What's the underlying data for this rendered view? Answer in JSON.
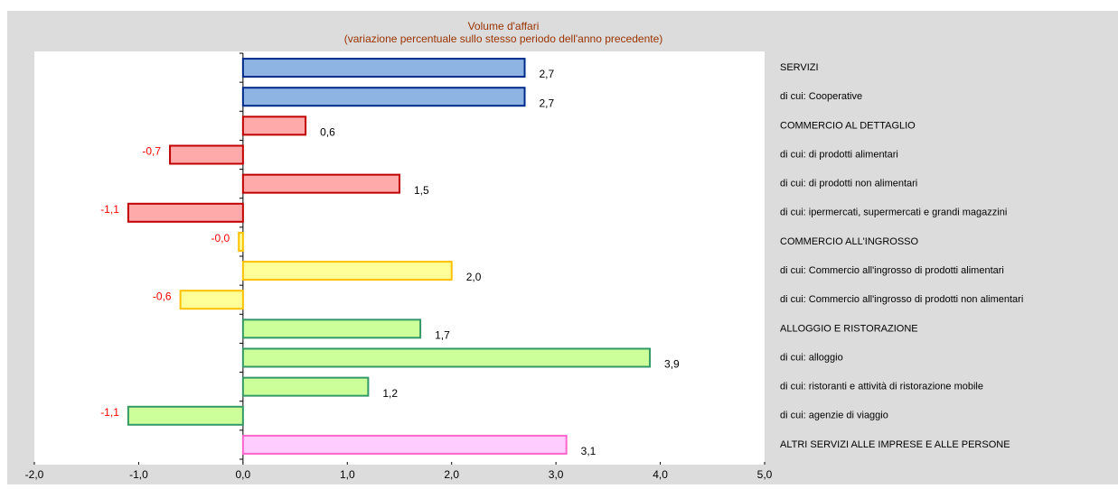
{
  "chart_data": {
    "type": "barh",
    "title": "Volume d'affari",
    "subtitle": "(variazione percentuale sullo stesso periodo dell'anno precedente)",
    "categories": [
      "SERVIZI",
      "di cui: Cooperative",
      "COMMERCIO AL DETTAGLIO",
      "di cui: di prodotti alimentari",
      "di cui: di prodotti non alimentari",
      "di cui: ipermercati, supermercati e grandi magazzini",
      "COMMERCIO ALL'INGROSSO",
      "di cui: Commercio all'ingrosso di prodotti alimentari",
      "di cui: Commercio all'ingrosso di prodotti non alimentari",
      "ALLOGGIO E RISTORAZIONE",
      "di cui: alloggio",
      "di cui: ristoranti e attività di ristorazione mobile",
      "di cui: agenzie di viaggio",
      "ALTRI SERVIZI ALLE IMPRESE E ALLE PERSONE"
    ],
    "values": [
      2.7,
      2.7,
      0.6,
      -0.7,
      1.5,
      -1.1,
      -0.04,
      2.0,
      -0.6,
      1.7,
      3.9,
      1.2,
      -1.1,
      3.1
    ],
    "value_labels": [
      "2,7",
      "2,7",
      "0,6",
      "-0,7",
      "1,5",
      "-1,1",
      "-0,0",
      "2,0",
      "-0,6",
      "1,7",
      "3,9",
      "1,2",
      "-1,1",
      "3,1"
    ],
    "colors": [
      "#8db4e2",
      "#8db4e2",
      "#ffaaaa",
      "#ffaaaa",
      "#ffaaaa",
      "#ffaaaa",
      "#ffff99",
      "#ffff99",
      "#ffff99",
      "#ccff99",
      "#ccff99",
      "#ccff99",
      "#ccff99",
      "#ffccff"
    ],
    "edge_colors": [
      "#002a8a",
      "#002a8a",
      "#c00000",
      "#c00000",
      "#c00000",
      "#c00000",
      "#ffc000",
      "#ffc000",
      "#ffc000",
      "#339966",
      "#339966",
      "#339966",
      "#339966",
      "#ff66cc"
    ],
    "negative_label_color": "#ff0000",
    "xlim": [
      -2,
      5
    ],
    "xticks": [
      {
        "value": -2,
        "label": "-2,0"
      },
      {
        "value": -1,
        "label": "-1,0"
      },
      {
        "value": 0,
        "label": "0,0"
      },
      {
        "value": 1,
        "label": "1,0"
      },
      {
        "value": 2,
        "label": "2,0"
      },
      {
        "value": 3,
        "label": "3,0"
      },
      {
        "value": 4,
        "label": "4,0"
      },
      {
        "value": 5,
        "label": "5,0"
      }
    ],
    "grid": false
  }
}
